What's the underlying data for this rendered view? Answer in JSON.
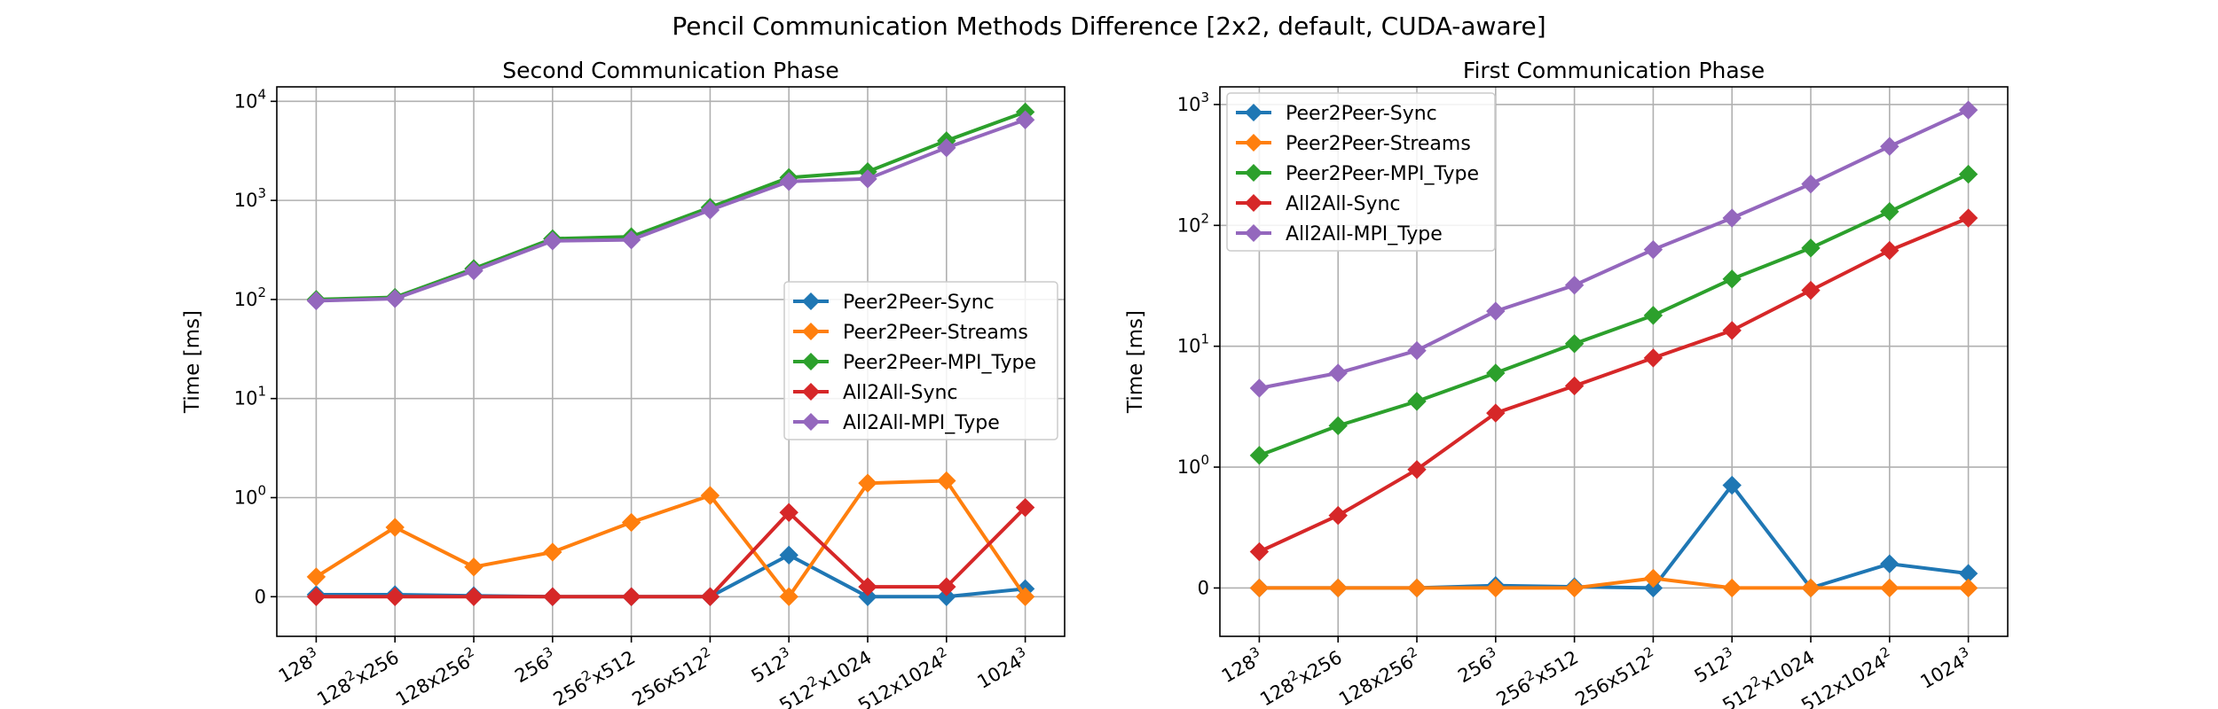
{
  "figure": {
    "title": "Pencil Communication Methods Difference [2x2, default, CUDA-aware]"
  },
  "chart_data": [
    {
      "type": "line",
      "title": "Second Communication Phase",
      "xlabel": "",
      "ylabel": "Time [ms]",
      "yscale": "symlog",
      "linthresh": 1,
      "ylim": [
        -0.4,
        14000
      ],
      "yticks": [
        0,
        1,
        10,
        100,
        1000,
        10000
      ],
      "grid": true,
      "legend_position": "center-right",
      "categories": [
        {
          "base": "128",
          "sup": "3",
          "tail": "",
          "tsup": ""
        },
        {
          "base": "128",
          "sup": "2",
          "tail": "x256",
          "tsup": ""
        },
        {
          "base": "128x256",
          "sup": "2",
          "tail": "",
          "tsup": ""
        },
        {
          "base": "256",
          "sup": "3",
          "tail": "",
          "tsup": ""
        },
        {
          "base": "256",
          "sup": "2",
          "tail": "x512",
          "tsup": ""
        },
        {
          "base": "256x512",
          "sup": "2",
          "tail": "",
          "tsup": ""
        },
        {
          "base": "512",
          "sup": "3",
          "tail": "",
          "tsup": ""
        },
        {
          "base": "512",
          "sup": "2",
          "tail": "x1024",
          "tsup": ""
        },
        {
          "base": "512x1024",
          "sup": "2",
          "tail": "",
          "tsup": ""
        },
        {
          "base": "1024",
          "sup": "3",
          "tail": "",
          "tsup": ""
        }
      ],
      "series": [
        {
          "name": "Peer2Peer-Sync",
          "color": "#1f77b4",
          "values": [
            0.02,
            0.02,
            0.01,
            0.0,
            0.0,
            0.0,
            0.42,
            0.0,
            0.0,
            0.08
          ]
        },
        {
          "name": "Peer2Peer-Streams",
          "color": "#ff7f0e",
          "values": [
            0.2,
            0.7,
            0.3,
            0.45,
            0.75,
            1.05,
            0.0,
            1.4,
            1.48,
            0.0
          ]
        },
        {
          "name": "Peer2Peer-MPI_Type",
          "color": "#2ca02c",
          "values": [
            100,
            105,
            205,
            410,
            430,
            850,
            1700,
            1950,
            4000,
            7800
          ]
        },
        {
          "name": "All2All-Sync",
          "color": "#d62728",
          "values": [
            0.0,
            0.0,
            0.0,
            0.0,
            0.0,
            0.0,
            0.85,
            0.1,
            0.1,
            0.9
          ]
        },
        {
          "name": "All2All-MPI_Type",
          "color": "#9467bd",
          "values": [
            97,
            102,
            195,
            390,
            400,
            800,
            1550,
            1650,
            3400,
            6500
          ]
        }
      ]
    },
    {
      "type": "line",
      "title": "First Communication Phase",
      "xlabel": "",
      "ylabel": "Time [ms]",
      "yscale": "symlog",
      "linthresh": 1,
      "ylim": [
        -0.4,
        1400
      ],
      "yticks": [
        0,
        1,
        10,
        100,
        1000
      ],
      "grid": true,
      "legend_position": "upper-left",
      "categories": [
        {
          "base": "128",
          "sup": "3",
          "tail": "",
          "tsup": ""
        },
        {
          "base": "128",
          "sup": "2",
          "tail": "x256",
          "tsup": ""
        },
        {
          "base": "128x256",
          "sup": "2",
          "tail": "",
          "tsup": ""
        },
        {
          "base": "256",
          "sup": "3",
          "tail": "",
          "tsup": ""
        },
        {
          "base": "256",
          "sup": "2",
          "tail": "x512",
          "tsup": ""
        },
        {
          "base": "256x512",
          "sup": "2",
          "tail": "",
          "tsup": ""
        },
        {
          "base": "512",
          "sup": "3",
          "tail": "",
          "tsup": ""
        },
        {
          "base": "512",
          "sup": "2",
          "tail": "x1024",
          "tsup": ""
        },
        {
          "base": "512x1024",
          "sup": "2",
          "tail": "",
          "tsup": ""
        },
        {
          "base": "1024",
          "sup": "3",
          "tail": "",
          "tsup": ""
        }
      ],
      "series": [
        {
          "name": "Peer2Peer-Sync",
          "color": "#1f77b4",
          "values": [
            0.0,
            0.0,
            0.0,
            0.02,
            0.01,
            0.0,
            0.85,
            0.0,
            0.2,
            0.12
          ]
        },
        {
          "name": "Peer2Peer-Streams",
          "color": "#ff7f0e",
          "values": [
            0.0,
            0.0,
            0.0,
            0.0,
            0.0,
            0.08,
            0.0,
            0.0,
            0.0,
            0.0
          ]
        },
        {
          "name": "Peer2Peer-MPI_Type",
          "color": "#2ca02c",
          "values": [
            1.25,
            2.2,
            3.5,
            6.0,
            10.5,
            18,
            36,
            65,
            130,
            265
          ]
        },
        {
          "name": "All2All-Sync",
          "color": "#d62728",
          "values": [
            0.3,
            0.6,
            0.98,
            2.8,
            4.7,
            8.0,
            13.5,
            29,
            62,
            115
          ]
        },
        {
          "name": "All2All-MPI_Type",
          "color": "#9467bd",
          "values": [
            4.5,
            6.0,
            9.2,
            19.5,
            32,
            63,
            115,
            220,
            450,
            900
          ]
        }
      ]
    }
  ]
}
